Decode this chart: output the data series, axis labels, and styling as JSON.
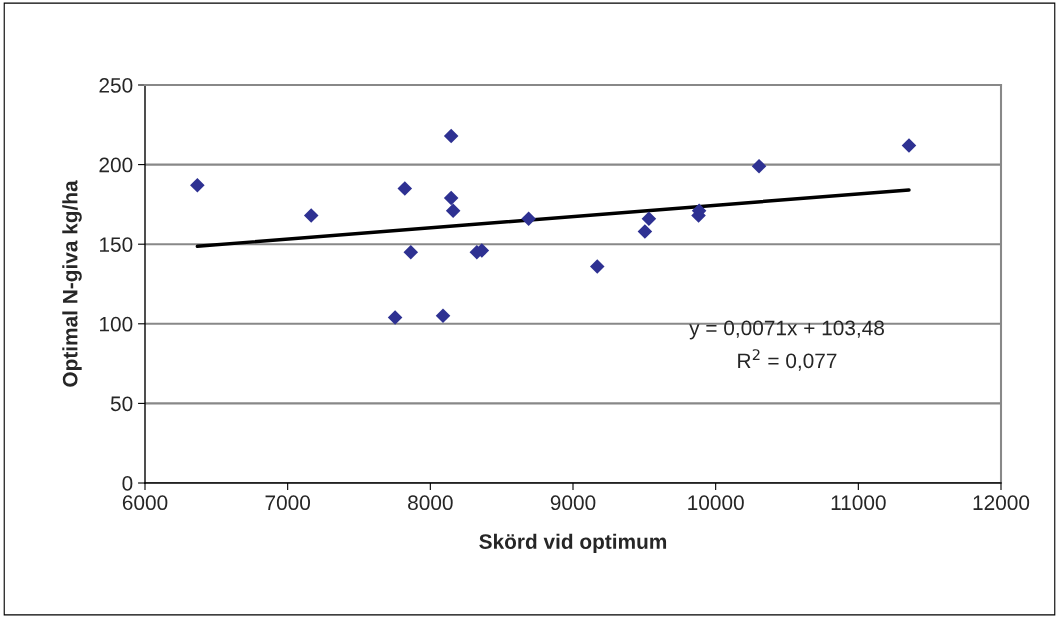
{
  "chart_data": {
    "type": "scatter",
    "xlabel": "Skörd vid optimum",
    "ylabel": "Optimal N-giva kg/ha",
    "xlim": [
      6000,
      12000
    ],
    "xticks": [
      6000,
      7000,
      8000,
      9000,
      10000,
      11000,
      12000
    ],
    "ylim": [
      0,
      250
    ],
    "yticks": [
      0,
      50,
      100,
      150,
      200,
      250
    ],
    "grid": "y",
    "legend": false,
    "series": [
      {
        "marker": "diamond",
        "color": "#2e3192",
        "x": [
          6367,
          7165,
          7821,
          8146,
          8146,
          8160,
          8689,
          7863,
          8326,
          8361,
          7753,
          8089,
          9170,
          9504,
          9532,
          9880,
          9884,
          10304,
          11355
        ],
        "values": [
          187,
          168,
          185,
          218,
          179,
          171,
          166,
          145,
          145,
          146,
          104,
          105,
          136,
          158,
          166,
          168,
          171,
          199,
          212
        ]
      },
      {
        "type": "line",
        "marker": "none",
        "color": "#000000",
        "line_style": "solid",
        "x": [
          6367,
          11355
        ],
        "values": [
          148.7,
          184.1
        ]
      }
    ],
    "annotations": [
      "y = 0,0071x + 103,48",
      "R$^{2}$ = 0,077"
    ]
  }
}
